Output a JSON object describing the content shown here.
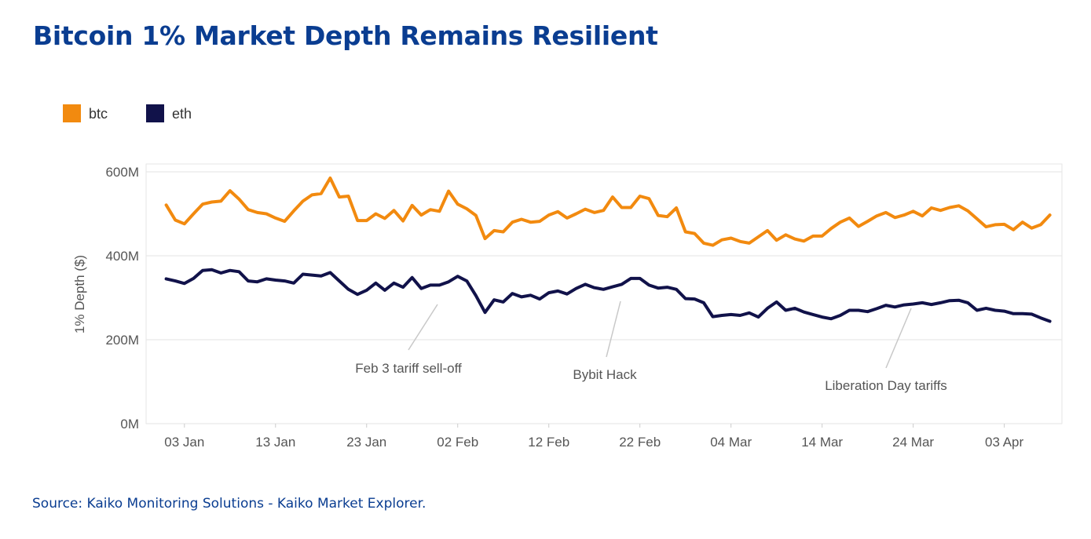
{
  "title": "Bitcoin 1% Market Depth Remains Resilient",
  "source": "Source: Kaiko Monitoring Solutions - Kaiko Market Explorer.",
  "chart_data": {
    "type": "line",
    "ylabel": "1% Depth ($)",
    "ylim": [
      0,
      600
    ],
    "yticks": [
      0,
      200,
      400,
      600
    ],
    "ytick_labels": [
      "0M",
      "200M",
      "400M",
      "600M"
    ],
    "x_start_day": 0,
    "x_end_day": 97,
    "xticks": [
      3,
      13,
      23,
      33,
      43,
      53,
      63,
      73,
      83,
      93
    ],
    "xtick_labels": [
      "03 Jan",
      "13 Jan",
      "23 Jan",
      "02 Feb",
      "12 Feb",
      "22 Feb",
      "04 Mar",
      "14 Mar",
      "24 Mar",
      "03 Apr"
    ],
    "grid": true,
    "legend_position": "top-left",
    "colors": {
      "btc": "#f28a0f",
      "eth": "#11124a"
    },
    "series": [
      {
        "name": "btc",
        "color": "#f28a0f",
        "start_day": 1,
        "values": [
          521,
          485,
          476,
          500,
          523,
          528,
          530,
          555,
          535,
          510,
          503,
          500,
          490,
          482,
          507,
          530,
          545,
          548,
          585,
          540,
          542,
          484,
          484,
          500,
          489,
          508,
          483,
          520,
          497,
          510,
          506,
          554,
          523,
          512,
          496,
          441,
          460,
          457,
          480,
          487,
          480,
          482,
          497,
          505,
          490,
          500,
          511,
          503,
          508,
          540,
          515,
          515,
          542,
          536,
          496,
          493,
          514,
          457,
          453,
          430,
          425,
          438,
          442,
          434,
          430,
          445,
          460,
          437,
          450,
          440,
          435,
          447,
          447,
          465,
          480,
          490,
          470,
          482,
          495,
          503,
          491,
          497,
          506,
          495,
          514,
          508,
          515,
          519,
          507,
          488,
          469,
          474,
          475,
          462,
          480,
          466,
          474,
          497
        ]
      },
      {
        "name": "eth",
        "color": "#11124a",
        "start_day": 1,
        "values": [
          345,
          340,
          334,
          346,
          365,
          367,
          359,
          365,
          362,
          340,
          338,
          345,
          342,
          340,
          335,
          356,
          354,
          352,
          360,
          340,
          320,
          308,
          318,
          335,
          318,
          335,
          325,
          348,
          322,
          330,
          330,
          338,
          351,
          340,
          305,
          265,
          295,
          290,
          310,
          302,
          306,
          297,
          312,
          316,
          309,
          322,
          332,
          324,
          320,
          326,
          332,
          346,
          346,
          330,
          323,
          325,
          320,
          298,
          297,
          288,
          255,
          258,
          260,
          258,
          264,
          254,
          275,
          290,
          270,
          275,
          266,
          260,
          254,
          250,
          258,
          270,
          270,
          267,
          274,
          282,
          278,
          283,
          285,
          288,
          284,
          288,
          293,
          294,
          288,
          270,
          275,
          270,
          268,
          262,
          262,
          261,
          252,
          244
        ]
      }
    ],
    "annotations": [
      {
        "text": "Feb 3 tariff sell-off",
        "day": 34,
        "value": 82
      },
      {
        "text": "Bybit Hack",
        "day": 57,
        "value": 58
      },
      {
        "text": "Liberation Day tariffs",
        "day": 89,
        "value": 32
      }
    ]
  }
}
